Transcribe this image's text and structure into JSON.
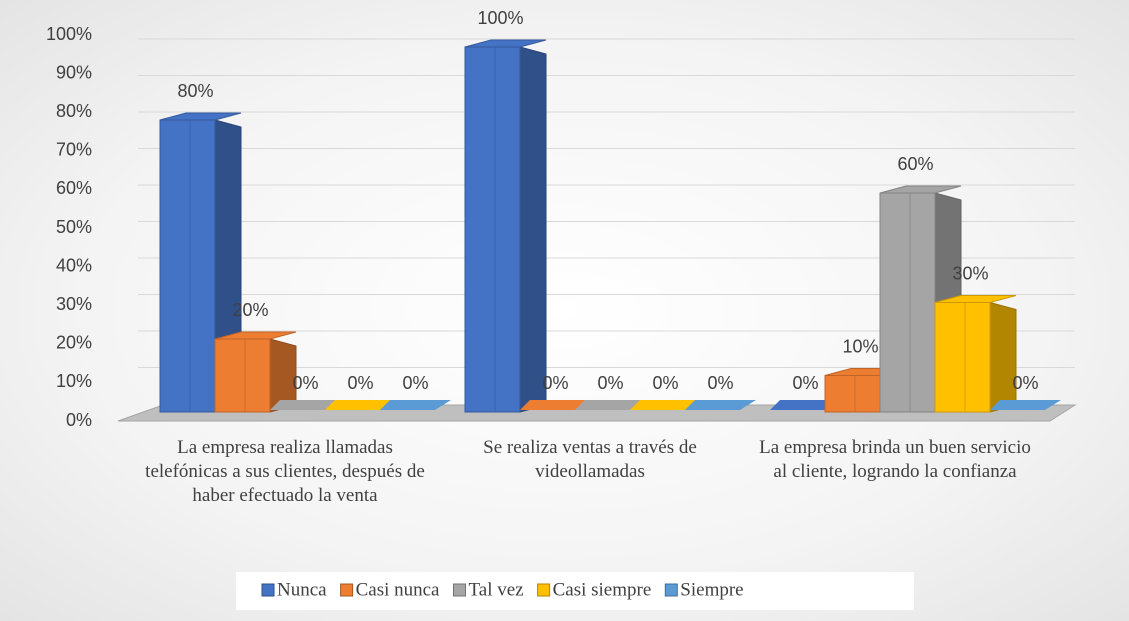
{
  "chart_data": {
    "type": "bar3d",
    "categories": [
      "La empresa realiza llamadas telefónicas a sus clientes, después de haber efectuado la venta",
      "Se realiza ventas a través de videollamadas",
      "La empresa brinda un buen servicio al cliente, logrando la confianza"
    ],
    "series": [
      {
        "name": "Nunca",
        "color": "#4472c4",
        "values": [
          80,
          100,
          0
        ],
        "value_labels": [
          "80%",
          "100%",
          "0%"
        ]
      },
      {
        "name": "Casi nunca",
        "color": "#ed7d31",
        "values": [
          20,
          0,
          10
        ],
        "value_labels": [
          "20%",
          "0%",
          "10%"
        ]
      },
      {
        "name": "Tal vez",
        "color": "#a5a5a5",
        "values": [
          0,
          0,
          60
        ],
        "value_labels": [
          "0%",
          "0%",
          "60%"
        ]
      },
      {
        "name": "Casi siempre",
        "color": "#ffc000",
        "values": [
          0,
          0,
          30
        ],
        "value_labels": [
          "0%",
          "0%",
          "30%"
        ]
      },
      {
        "name": "Siempre",
        "color": "#5b9bd5",
        "values": [
          0,
          0,
          0
        ],
        "value_labels": [
          "0%",
          "0%",
          "0%"
        ]
      }
    ],
    "ylim": [
      0,
      100
    ],
    "yticks": [
      {
        "value": 0,
        "label": "0%"
      },
      {
        "value": 10,
        "label": "10%"
      },
      {
        "value": 20,
        "label": "20%"
      },
      {
        "value": 30,
        "label": "30%"
      },
      {
        "value": 40,
        "label": "40%"
      },
      {
        "value": 50,
        "label": "50%"
      },
      {
        "value": 60,
        "label": "60%"
      },
      {
        "value": 70,
        "label": "70%"
      },
      {
        "value": 80,
        "label": "80%"
      },
      {
        "value": 90,
        "label": "90%"
      },
      {
        "value": 100,
        "label": "100%"
      }
    ],
    "grid": true,
    "legend": "bottom"
  }
}
